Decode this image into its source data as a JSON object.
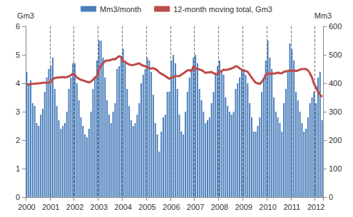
{
  "chart_data": {
    "type": "bar",
    "categories": [
      "2000",
      null,
      null,
      null,
      null,
      null,
      null,
      null,
      null,
      null,
      null,
      null,
      "2001",
      null,
      null,
      null,
      null,
      null,
      null,
      null,
      null,
      null,
      null,
      null,
      "2002",
      null,
      null,
      null,
      null,
      null,
      null,
      null,
      null,
      null,
      null,
      null,
      "2003",
      null,
      null,
      null,
      null,
      null,
      null,
      null,
      null,
      null,
      null,
      null,
      "2004",
      null,
      null,
      null,
      null,
      null,
      null,
      null,
      null,
      null,
      null,
      null,
      "2005",
      null,
      null,
      null,
      null,
      null,
      null,
      null,
      null,
      null,
      null,
      null,
      "2006",
      null,
      null,
      null,
      null,
      null,
      null,
      null,
      null,
      null,
      null,
      null,
      "2007",
      null,
      null,
      null,
      null,
      null,
      null,
      null,
      null,
      null,
      null,
      null,
      "2008",
      null,
      null,
      null,
      null,
      null,
      null,
      null,
      null,
      null,
      null,
      null,
      "2009",
      null,
      null,
      null,
      null,
      null,
      null,
      null,
      null,
      null,
      null,
      null,
      "2010",
      null,
      null,
      null,
      null,
      null,
      null,
      null,
      null,
      null,
      null,
      null,
      "2011",
      null,
      null,
      null,
      null,
      null,
      null,
      null,
      null,
      null,
      null,
      null,
      "2012",
      null,
      null,
      null
    ],
    "series": [
      {
        "name": "Mm3/month",
        "type": "bar",
        "axis": "y2",
        "color": "#4a7ebb",
        "values": [
          440,
          400,
          410,
          330,
          320,
          260,
          250,
          290,
          310,
          370,
          420,
          450,
          460,
          490,
          380,
          320,
          270,
          240,
          250,
          260,
          300,
          380,
          420,
          470,
          470,
          400,
          340,
          280,
          250,
          220,
          210,
          240,
          300,
          380,
          420,
          480,
          550,
          550,
          490,
          420,
          340,
          290,
          260,
          300,
          330,
          450,
          460,
          490,
          520,
          470,
          380,
          320,
          270,
          250,
          260,
          290,
          330,
          400,
          430,
          450,
          490,
          480,
          440,
          360,
          260,
          220,
          160,
          230,
          280,
          290,
          370,
          370,
          480,
          500,
          470,
          380,
          290,
          230,
          220,
          300,
          370,
          420,
          450,
          490,
          500,
          470,
          380,
          340,
          300,
          260,
          270,
          280,
          330,
          370,
          430,
          460,
          480,
          440,
          430,
          350,
          320,
          300,
          290,
          300,
          380,
          400,
          420,
          450,
          450,
          430,
          400,
          330,
          280,
          230,
          230,
          250,
          280,
          370,
          420,
          480,
          550,
          490,
          450,
          350,
          300,
          280,
          260,
          230,
          330,
          380,
          440,
          540,
          520,
          480,
          370,
          340,
          300,
          260,
          230,
          240,
          280,
          330,
          350,
          370,
          330,
          420,
          440,
          270
        ]
      },
      {
        "name": "12-month moving total, Gm3",
        "type": "line",
        "color": "#be4b48",
        "values": [
          3.95,
          3.96,
          3.97,
          3.98,
          3.98,
          3.99,
          4.0,
          4.0,
          4.02,
          4.02,
          4.01,
          4.02,
          4.05,
          4.15,
          4.18,
          4.2,
          4.2,
          4.21,
          4.22,
          4.2,
          4.22,
          4.24,
          4.28,
          4.34,
          4.3,
          4.2,
          4.16,
          4.12,
          4.1,
          4.08,
          4.05,
          4.03,
          4.06,
          4.12,
          4.2,
          4.25,
          4.5,
          4.62,
          4.7,
          4.78,
          4.8,
          4.8,
          4.82,
          4.85,
          4.84,
          4.9,
          4.95,
          4.92,
          4.78,
          4.75,
          4.7,
          4.66,
          4.64,
          4.64,
          4.66,
          4.68,
          4.7,
          4.65,
          4.62,
          4.6,
          4.55,
          4.53,
          4.52,
          4.53,
          4.5,
          4.45,
          4.38,
          4.33,
          4.3,
          4.25,
          4.2,
          4.16,
          4.2,
          4.22,
          4.25,
          4.25,
          4.25,
          4.3,
          4.35,
          4.4,
          4.45,
          4.46,
          4.42,
          4.6,
          4.5,
          4.52,
          4.48,
          4.46,
          4.42,
          4.36,
          4.38,
          4.38,
          4.4,
          4.35,
          4.33,
          4.32,
          4.4,
          4.42,
          4.48,
          4.46,
          4.48,
          4.5,
          4.52,
          4.55,
          4.6,
          4.58,
          4.52,
          4.48,
          4.45,
          4.43,
          4.4,
          4.3,
          4.2,
          4.1,
          4.02,
          4.0,
          3.97,
          4.05,
          4.15,
          4.3,
          4.35,
          4.32,
          4.35,
          4.34,
          4.35,
          4.38,
          4.35,
          4.35,
          4.4,
          4.42,
          4.43,
          4.45,
          4.42,
          4.45,
          4.43,
          4.45,
          4.48,
          4.5,
          4.5,
          4.5,
          4.45,
          4.35,
          4.2,
          3.98,
          3.85,
          3.7,
          3.6,
          3.52
        ]
      }
    ],
    "y_label": "Gm3",
    "y2_label": "Mm3",
    "ylim": [
      0,
      6
    ],
    "yticks": [
      0,
      1,
      2,
      3,
      4,
      5,
      6
    ],
    "y2lim": [
      0,
      600
    ],
    "y2ticks": [
      0,
      100,
      200,
      300,
      400,
      500,
      600
    ],
    "grid": "x",
    "legend": "top"
  }
}
